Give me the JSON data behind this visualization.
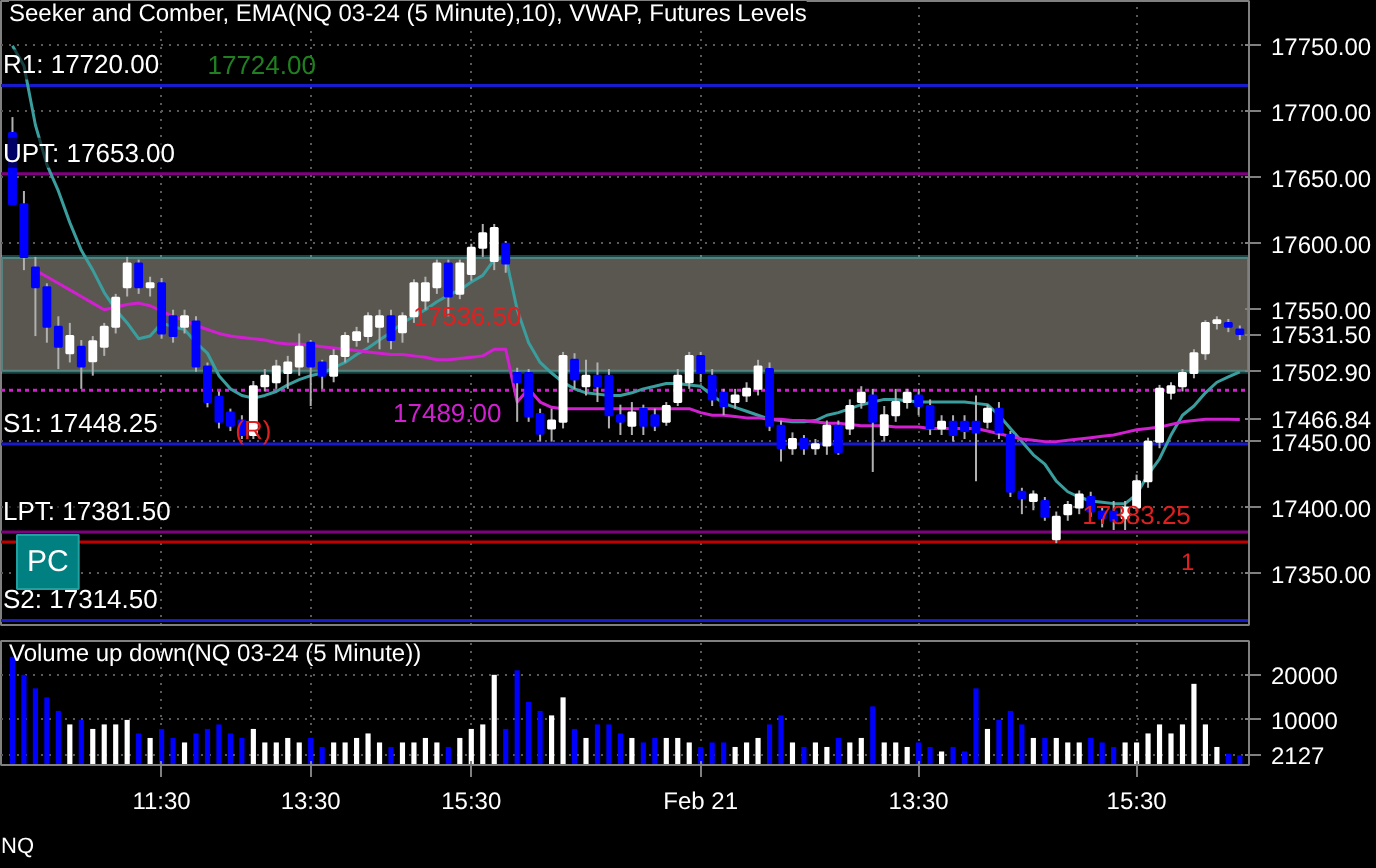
{
  "chart_data": [
    {
      "type": "candlestick",
      "title": "Seeker and Comber, EMA(NQ 03-24 (5 Minute),10), VWAP, Futures Levels",
      "categories": [
        null,
        null,
        null,
        null,
        null,
        null,
        null,
        null,
        null,
        null,
        null,
        null,
        null,
        null,
        null,
        null,
        null,
        null,
        null,
        null,
        null,
        null,
        null,
        null,
        null,
        null,
        null,
        null,
        null,
        null,
        null,
        null,
        null,
        null,
        null,
        null,
        null,
        null,
        null,
        null,
        null,
        null,
        null,
        null,
        null,
        null,
        null,
        null,
        null,
        null,
        null,
        null,
        null,
        null,
        null,
        null,
        null,
        null,
        null,
        null,
        null,
        null,
        null,
        null,
        null,
        null,
        null,
        null,
        null,
        null,
        null,
        null,
        null,
        null,
        null,
        null,
        null,
        null,
        null,
        null,
        null,
        null,
        null,
        null,
        null,
        null,
        null,
        null,
        null,
        null,
        null,
        null,
        null,
        null,
        null,
        null,
        null,
        null,
        null,
        null,
        null,
        null,
        null,
        null,
        null,
        null,
        null,
        null
      ],
      "ohlc": [
        [
          17684,
          17696,
          17630,
          17630
        ],
        [
          17630,
          17640,
          17580,
          17590
        ],
        [
          17582,
          17590,
          17530,
          17567
        ],
        [
          17567,
          17570,
          17525,
          17537
        ],
        [
          17537,
          17545,
          17505,
          17522
        ],
        [
          17517,
          17540,
          17510,
          17530
        ],
        [
          17522,
          17527,
          17490,
          17507
        ],
        [
          17511,
          17530,
          17500,
          17526
        ],
        [
          17522,
          17540,
          17515,
          17537
        ],
        [
          17537,
          17562,
          17532,
          17559
        ],
        [
          17567,
          17590,
          17560,
          17585
        ],
        [
          17585,
          17588,
          17562,
          17567
        ],
        [
          17567,
          17575,
          17560,
          17570
        ],
        [
          17570,
          17574,
          17528,
          17532
        ],
        [
          17545,
          17550,
          17525,
          17530
        ],
        [
          17537,
          17550,
          17532,
          17545
        ],
        [
          17541,
          17545,
          17503,
          17507
        ],
        [
          17507,
          17510,
          17476,
          17480
        ],
        [
          17484,
          17488,
          17460,
          17465
        ],
        [
          17472,
          17475,
          17458,
          17462
        ],
        [
          17466,
          17470,
          17452,
          17455
        ],
        [
          17455,
          17496,
          17452,
          17492
        ],
        [
          17492,
          17505,
          17488,
          17500
        ],
        [
          17495,
          17512,
          17490,
          17507
        ],
        [
          17502,
          17515,
          17490,
          17510
        ],
        [
          17507,
          17532,
          17500,
          17522
        ],
        [
          17525,
          17527,
          17477,
          17507
        ],
        [
          17510,
          17512,
          17490,
          17500
        ],
        [
          17500,
          17520,
          17495,
          17515
        ],
        [
          17515,
          17533,
          17510,
          17530
        ],
        [
          17527,
          17537,
          17522,
          17533
        ],
        [
          17530,
          17548,
          17525,
          17545
        ],
        [
          17537,
          17550,
          17520,
          17545
        ],
        [
          17545,
          17550,
          17520,
          17527
        ],
        [
          17533,
          17548,
          17525,
          17545
        ],
        [
          17545,
          17573,
          17540,
          17570
        ],
        [
          17557,
          17575,
          17550,
          17570
        ],
        [
          17567,
          17588,
          17562,
          17585
        ],
        [
          17585,
          17588,
          17545,
          17560
        ],
        [
          17562,
          17588,
          17558,
          17585
        ],
        [
          17577,
          17600,
          17572,
          17597
        ],
        [
          17597,
          17615,
          17590,
          17608
        ],
        [
          17587,
          17615,
          17580,
          17612
        ],
        [
          17600,
          17602,
          17578,
          17585
        ],
        [
          17502,
          17506,
          17465,
          17495
        ],
        [
          17502,
          17505,
          17465,
          17469
        ],
        [
          17471,
          17475,
          17450,
          17456
        ],
        [
          17460,
          17475,
          17450,
          17466
        ],
        [
          17465,
          17518,
          17460,
          17515
        ],
        [
          17512,
          17517,
          17490,
          17497
        ],
        [
          17492,
          17512,
          17485,
          17500
        ],
        [
          17500,
          17510,
          17480,
          17492
        ],
        [
          17500,
          17505,
          17460,
          17470
        ],
        [
          17470,
          17478,
          17455,
          17465
        ],
        [
          17462,
          17480,
          17455,
          17472
        ],
        [
          17475,
          17478,
          17455,
          17462
        ],
        [
          17470,
          17475,
          17458,
          17462
        ],
        [
          17465,
          17480,
          17462,
          17477
        ],
        [
          17480,
          17505,
          17477,
          17500
        ],
        [
          17495,
          17518,
          17490,
          17515
        ],
        [
          17515,
          17518,
          17495,
          17502
        ],
        [
          17500,
          17505,
          17477,
          17482
        ],
        [
          17487,
          17490,
          17470,
          17477
        ],
        [
          17480,
          17490,
          17475,
          17485
        ],
        [
          17485,
          17495,
          17480,
          17490
        ],
        [
          17490,
          17512,
          17485,
          17507
        ],
        [
          17505,
          17510,
          17458,
          17462
        ],
        [
          17462,
          17466,
          17435,
          17445
        ],
        [
          17445,
          17457,
          17440,
          17452
        ],
        [
          17452,
          17455,
          17440,
          17445
        ],
        [
          17445,
          17452,
          17440,
          17448
        ],
        [
          17447,
          17466,
          17440,
          17462
        ],
        [
          17462,
          17466,
          17440,
          17442
        ],
        [
          17460,
          17482,
          17455,
          17477
        ],
        [
          17480,
          17492,
          17475,
          17487
        ],
        [
          17485,
          17490,
          17427,
          17465
        ],
        [
          17455,
          17477,
          17450,
          17470
        ],
        [
          17470,
          17490,
          17465,
          17480
        ],
        [
          17480,
          17490,
          17475,
          17487
        ],
        [
          17485,
          17490,
          17470,
          17477
        ],
        [
          17477,
          17482,
          17455,
          17460
        ],
        [
          17460,
          17470,
          17455,
          17465
        ],
        [
          17465,
          17470,
          17450,
          17455
        ],
        [
          17465,
          17470,
          17452,
          17458
        ],
        [
          17465,
          17485,
          17420,
          17457
        ],
        [
          17465,
          17478,
          17460,
          17475
        ],
        [
          17475,
          17480,
          17452,
          17457
        ],
        [
          17455,
          17458,
          17408,
          17412
        ],
        [
          17412,
          17415,
          17395,
          17407
        ],
        [
          17405,
          17413,
          17398,
          17410
        ],
        [
          17405,
          17408,
          17390,
          17393
        ],
        [
          17376,
          17397,
          17373,
          17393
        ],
        [
          17395,
          17405,
          17390,
          17402
        ],
        [
          17400,
          17413,
          17395,
          17410
        ],
        [
          17408,
          17412,
          17393,
          17397
        ],
        [
          17397,
          17400,
          17385,
          17392
        ],
        [
          17397,
          17405,
          17383,
          17390
        ],
        [
          17392,
          17405,
          17383,
          17400
        ],
        [
          17400,
          17425,
          17397,
          17420
        ],
        [
          17420,
          17453,
          17415,
          17450
        ],
        [
          17450,
          17493,
          17445,
          17490
        ],
        [
          17487,
          17495,
          17482,
          17492
        ],
        [
          17492,
          17505,
          17488,
          17502
        ],
        [
          17502,
          17520,
          17498,
          17517
        ],
        [
          17517,
          17542,
          17512,
          17540
        ],
        [
          17540,
          17545,
          17535,
          17542
        ],
        [
          17540,
          17543,
          17533,
          17537
        ],
        [
          17535,
          17538,
          17527,
          17531.5
        ]
      ],
      "value_labels": [
        null,
        null,
        null,
        null,
        null,
        null,
        null,
        null,
        null,
        null,
        null,
        null,
        null,
        null,
        null,
        null,
        null,
        null,
        null,
        null,
        null,
        null,
        null,
        null,
        null,
        null,
        null,
        null,
        null,
        null,
        null,
        null,
        null,
        null,
        null,
        null,
        null,
        null,
        null,
        null,
        null,
        null,
        null,
        null,
        null,
        null,
        null,
        null,
        null,
        null,
        null,
        null,
        null,
        null,
        null,
        null,
        null,
        null,
        null,
        null,
        null,
        null,
        null,
        null,
        null,
        null,
        null,
        null,
        null,
        null,
        null,
        null,
        null,
        null,
        null,
        null,
        null,
        null,
        null,
        null,
        null,
        null,
        null,
        null,
        null,
        null,
        null,
        null,
        null,
        null,
        null,
        null,
        null,
        null,
        null,
        null,
        null,
        null,
        null,
        null,
        null,
        null,
        null,
        null,
        null,
        null,
        null,
        "17531.50"
      ],
      "colors": [
        "#0000ff",
        "#0000ff",
        "#0000ff",
        "#0000ff",
        "#0000ff",
        "#ffffff",
        "#0000ff",
        "#ffffff",
        "#ffffff",
        "#ffffff",
        "#ffffff",
        "#0000ff",
        "#ffffff",
        "#0000ff",
        "#0000ff",
        "#ffffff",
        "#0000ff",
        "#0000ff",
        "#0000ff",
        "#0000ff",
        "#0000ff",
        "#ffffff",
        "#ffffff",
        "#ffffff",
        "#ffffff",
        "#ffffff",
        "#0000ff",
        "#0000ff",
        "#ffffff",
        "#ffffff",
        "#ffffff",
        "#ffffff",
        "#ffffff",
        "#0000ff",
        "#ffffff",
        "#ffffff",
        "#ffffff",
        "#ffffff",
        "#0000ff",
        "#ffffff",
        "#ffffff",
        "#ffffff",
        "#ffffff",
        "#0000ff",
        "#0000ff",
        "#0000ff",
        "#0000ff",
        "#ffffff",
        "#ffffff",
        "#0000ff",
        "#ffffff",
        "#0000ff",
        "#0000ff",
        "#0000ff",
        "#ffffff",
        "#0000ff",
        "#0000ff",
        "#ffffff",
        "#ffffff",
        "#ffffff",
        "#0000ff",
        "#0000ff",
        "#0000ff",
        "#ffffff",
        "#ffffff",
        "#ffffff",
        "#0000ff",
        "#0000ff",
        "#ffffff",
        "#0000ff",
        "#ffffff",
        "#ffffff",
        "#0000ff",
        "#ffffff",
        "#ffffff",
        "#0000ff",
        "#ffffff",
        "#ffffff",
        "#ffffff",
        "#0000ff",
        "#0000ff",
        "#ffffff",
        "#0000ff",
        "#0000ff",
        "#0000ff",
        "#ffffff",
        "#0000ff",
        "#0000ff",
        "#0000ff",
        "#ffffff",
        "#0000ff",
        "#ffffff",
        "#ffffff",
        "#ffffff",
        "#0000ff",
        "#0000ff",
        "#0000ff",
        "#ffffff",
        "#ffffff",
        "#ffffff",
        "#ffffff",
        "#ffffff",
        "#ffffff",
        "#ffffff",
        "#ffffff",
        "#ffffff",
        "#0000ff",
        "#0000ff"
      ],
      "series": [
        {
          "type": "line",
          "color": "#3a9e9e",
          "values": [
            17750,
            17735,
            17690,
            17660,
            17640,
            17616,
            17595,
            17580,
            17563,
            17550,
            17540,
            17528,
            17530,
            17540,
            17537,
            17535,
            17525,
            17517,
            17500,
            17490,
            17485,
            17483,
            17485,
            17488,
            17493,
            17497,
            17500,
            17502,
            17506,
            17510,
            17516,
            17521,
            17527,
            17533,
            17540,
            17545,
            17550,
            17556,
            17561,
            17565,
            17571,
            17576,
            17588,
            17590,
            17550,
            17525,
            17510,
            17502,
            17495,
            17490,
            17487,
            17486,
            17485,
            17485,
            17487,
            17490,
            17492,
            17494,
            17494,
            17493,
            17492,
            17485,
            17479,
            17476,
            17473,
            17470,
            17467,
            17466,
            17465,
            17465,
            17466,
            17470,
            17472,
            17475,
            17478,
            17480,
            17482,
            17482,
            17481,
            17480,
            17480,
            17480,
            17480,
            17480,
            17479,
            17478,
            17470,
            17460,
            17450,
            17440,
            17433,
            17420,
            17412,
            17408,
            17405,
            17404,
            17403,
            17403,
            17410,
            17425,
            17437,
            17455,
            17470,
            17477,
            17487,
            17495,
            17499,
            17502.9
          ],
          "value_labels": [
            null,
            null,
            null,
            null,
            null,
            null,
            null,
            null,
            null,
            null,
            null,
            null,
            null,
            null,
            null,
            null,
            null,
            null,
            null,
            null,
            null,
            null,
            null,
            null,
            null,
            null,
            null,
            null,
            null,
            null,
            null,
            null,
            null,
            null,
            null,
            null,
            null,
            null,
            null,
            null,
            null,
            null,
            null,
            null,
            null,
            null,
            null,
            null,
            null,
            null,
            null,
            null,
            null,
            null,
            null,
            null,
            null,
            null,
            null,
            null,
            null,
            null,
            null,
            null,
            null,
            null,
            null,
            null,
            null,
            null,
            null,
            null,
            null,
            null,
            null,
            null,
            null,
            null,
            null,
            null,
            null,
            null,
            null,
            null,
            null,
            null,
            null,
            null,
            null,
            null,
            null,
            null,
            null,
            null,
            null,
            null,
            null,
            null,
            null,
            null,
            null,
            null,
            null,
            null,
            null,
            null,
            null,
            "17502.90"
          ]
        },
        {
          "type": "line",
          "color": "#d020d0",
          "values": [
            null,
            null,
            17580,
            17575,
            17570,
            17565,
            17560,
            17555,
            17550,
            17552,
            17554,
            17555,
            17553,
            17549,
            17545,
            17542,
            17538,
            17535,
            17532,
            17530,
            17529,
            17528,
            17527,
            17525,
            17524,
            17524,
            17523,
            17522,
            17521,
            17520,
            17519,
            17518,
            17517,
            17516,
            17516,
            17515,
            17514,
            17512,
            17512,
            17513,
            17514,
            17515,
            17520,
            17520,
            17480,
            17490,
            17480,
            17476,
            17475,
            17475,
            17475,
            17475,
            17475,
            17475,
            17475,
            17475,
            17475,
            17475,
            17475,
            17475,
            17472,
            17470,
            17470,
            17469,
            17468,
            17468,
            17467,
            17467,
            17466,
            17466,
            17465,
            17464,
            17464,
            17463,
            17462,
            17462,
            17462,
            17461,
            17461,
            17461,
            17460,
            17460,
            17460,
            17460,
            17460,
            17458,
            17456,
            17454,
            17452,
            17451,
            17450,
            17450,
            17451,
            17452,
            17453,
            17454,
            17455,
            17457,
            17459,
            17460,
            17461,
            17463,
            17465,
            17466,
            17467,
            17467,
            17467,
            17466.84
          ],
          "value_labels": [
            null,
            null,
            null,
            null,
            null,
            null,
            null,
            null,
            null,
            null,
            null,
            null,
            null,
            null,
            null,
            null,
            null,
            null,
            null,
            null,
            null,
            null,
            null,
            null,
            null,
            null,
            null,
            null,
            null,
            null,
            null,
            null,
            null,
            null,
            null,
            null,
            null,
            null,
            null,
            null,
            null,
            null,
            null,
            null,
            null,
            null,
            null,
            null,
            null,
            null,
            null,
            null,
            null,
            null,
            null,
            null,
            null,
            null,
            null,
            null,
            null,
            null,
            null,
            null,
            null,
            null,
            null,
            null,
            null,
            null,
            null,
            null,
            null,
            null,
            null,
            null,
            null,
            null,
            null,
            null,
            null,
            null,
            null,
            null,
            null,
            null,
            null,
            null,
            null,
            null,
            null,
            null,
            null,
            null,
            null,
            null,
            null,
            null,
            null,
            null,
            null,
            null,
            null,
            null,
            null,
            null,
            null,
            "17466.84"
          ]
        }
      ],
      "bands": [
        {
          "axis": "y",
          "from": 17503,
          "to": 17590,
          "color": "#5a5750"
        }
      ],
      "ref_lines": [
        {
          "axis": "y",
          "value": 17720,
          "label": "R1: 17720.00",
          "color": "#1a1acd"
        },
        {
          "axis": "y",
          "value": 17653,
          "label": "UPT: 17653.00",
          "color": "#800080"
        },
        {
          "axis": "y",
          "value": 17489,
          "label": "17489.00",
          "color": "#d020d0",
          "line_style": "dotted"
        },
        {
          "axis": "y",
          "value": 17448.25,
          "label": "S1: 17448.25",
          "color": "#1a1acd"
        },
        {
          "axis": "y",
          "value": 17381.5,
          "label": "LPT: 17381.50",
          "color": "#800080"
        },
        {
          "axis": "y",
          "value": 17314.5,
          "label": "S2: 17314.50",
          "color": "#1a1acd"
        },
        {
          "axis": "y",
          "value": 17374,
          "color": "#c00000"
        }
      ],
      "annotations": [
        {
          "text": "17724.00",
          "y": 17724
        },
        "17536.50",
        {
          "text": "17383.25",
          "y": 17383.25
        },
        {
          "text": "(R)",
          "y": 17443
        },
        "PC",
        "1"
      ],
      "ylim": [
        17311,
        17784
      ],
      "yticks": [
        {
          "value": 17350,
          "label": "17350.00"
        },
        {
          "value": 17400,
          "label": "17400.00"
        },
        {
          "value": 17450,
          "label": "17450.00"
        },
        {
          "value": 17550,
          "label": "17550.00"
        },
        {
          "value": 17600,
          "label": "17600.00"
        },
        {
          "value": 17650,
          "label": "17650.00"
        },
        {
          "value": 17700,
          "label": "17700.00"
        },
        {
          "value": 17750,
          "label": "17750.00"
        }
      ],
      "grid": true,
      "tick_labels": "y"
    },
    {
      "type": "bar",
      "title": "Volume up down(NQ 03-24 (5 Minute))",
      "categories": [
        null,
        null,
        null,
        null,
        null,
        null,
        null,
        null,
        null,
        null,
        null,
        null,
        null,
        "11:30",
        null,
        null,
        null,
        null,
        null,
        null,
        null,
        null,
        null,
        null,
        null,
        null,
        "13:30",
        null,
        null,
        null,
        null,
        null,
        null,
        null,
        null,
        null,
        null,
        null,
        null,
        null,
        "15:30",
        null,
        null,
        null,
        null,
        null,
        null,
        null,
        null,
        null,
        null,
        null,
        null,
        null,
        null,
        null,
        null,
        null,
        null,
        null,
        "Feb 21",
        null,
        null,
        null,
        null,
        null,
        null,
        null,
        null,
        null,
        null,
        null,
        null,
        null,
        null,
        null,
        null,
        null,
        null,
        "13:30",
        null,
        null,
        null,
        null,
        null,
        null,
        null,
        null,
        null,
        null,
        null,
        null,
        null,
        null,
        null,
        null,
        null,
        null,
        "15:30",
        null,
        null,
        null,
        null,
        null,
        null,
        null,
        null,
        null
      ],
      "values": [
        24000,
        20000,
        17000,
        15000,
        12000,
        9000,
        10000,
        8000,
        9000,
        9000,
        10000,
        7000,
        6000,
        8000,
        6000,
        5000,
        7000,
        8000,
        9000,
        7000,
        6000,
        8000,
        5000,
        5000,
        6000,
        5000,
        6000,
        4000,
        5000,
        5000,
        6000,
        7000,
        5000,
        4000,
        5000,
        5000,
        6000,
        5000,
        4000,
        6000,
        8000,
        9000,
        20000,
        8000,
        21000,
        14000,
        12000,
        11000,
        15000,
        8000,
        6000,
        9000,
        9000,
        7000,
        6000,
        5000,
        6000,
        6000,
        6000,
        5000,
        4000,
        5000,
        5000,
        4000,
        5000,
        6000,
        9000,
        11000,
        5000,
        4000,
        5000,
        4000,
        6000,
        5000,
        6000,
        13000,
        5000,
        5000,
        4000,
        5000,
        4000,
        3000,
        4000,
        3000,
        17000,
        8000,
        10000,
        12000,
        9000,
        6000,
        6000,
        6000,
        5000,
        5000,
        6000,
        5000,
        4000,
        5000,
        5000,
        7000,
        9000,
        7000,
        9000,
        18000,
        9000,
        4000,
        2500,
        2127
      ],
      "colors": [
        "#0000ff",
        "#0000ff",
        "#0000ff",
        "#0000ff",
        "#0000ff",
        "#ffffff",
        "#0000ff",
        "#ffffff",
        "#ffffff",
        "#ffffff",
        "#ffffff",
        "#0000ff",
        "#ffffff",
        "#0000ff",
        "#0000ff",
        "#ffffff",
        "#0000ff",
        "#0000ff",
        "#0000ff",
        "#0000ff",
        "#0000ff",
        "#ffffff",
        "#ffffff",
        "#ffffff",
        "#ffffff",
        "#ffffff",
        "#0000ff",
        "#0000ff",
        "#ffffff",
        "#ffffff",
        "#ffffff",
        "#ffffff",
        "#ffffff",
        "#0000ff",
        "#ffffff",
        "#ffffff",
        "#ffffff",
        "#ffffff",
        "#0000ff",
        "#ffffff",
        "#ffffff",
        "#ffffff",
        "#ffffff",
        "#0000ff",
        "#0000ff",
        "#0000ff",
        "#0000ff",
        "#ffffff",
        "#ffffff",
        "#0000ff",
        "#ffffff",
        "#0000ff",
        "#0000ff",
        "#0000ff",
        "#ffffff",
        "#0000ff",
        "#0000ff",
        "#ffffff",
        "#ffffff",
        "#ffffff",
        "#0000ff",
        "#0000ff",
        "#0000ff",
        "#ffffff",
        "#ffffff",
        "#ffffff",
        "#0000ff",
        "#0000ff",
        "#ffffff",
        "#0000ff",
        "#ffffff",
        "#ffffff",
        "#0000ff",
        "#ffffff",
        "#ffffff",
        "#0000ff",
        "#ffffff",
        "#ffffff",
        "#ffffff",
        "#0000ff",
        "#0000ff",
        "#ffffff",
        "#0000ff",
        "#0000ff",
        "#0000ff",
        "#ffffff",
        "#0000ff",
        "#0000ff",
        "#0000ff",
        "#ffffff",
        "#0000ff",
        "#ffffff",
        "#ffffff",
        "#ffffff",
        "#0000ff",
        "#0000ff",
        "#0000ff",
        "#ffffff",
        "#ffffff",
        "#ffffff",
        "#ffffff",
        "#ffffff",
        "#ffffff",
        "#ffffff",
        "#ffffff",
        "#ffffff",
        "#0000ff",
        "#0000ff"
      ],
      "annotations": [
        "NQ"
      ],
      "ylim": [
        0,
        27500
      ],
      "yticks": [
        {
          "value": 2127,
          "label": "2127"
        },
        10000,
        20000
      ],
      "grid": true
    }
  ]
}
